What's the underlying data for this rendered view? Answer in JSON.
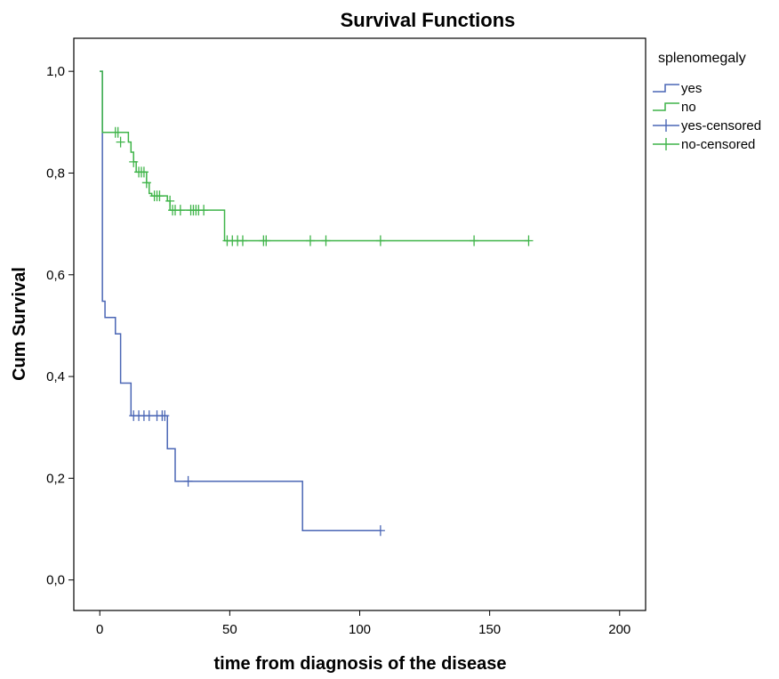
{
  "chart_data": {
    "type": "line",
    "step": true,
    "title": "Survival Functions",
    "xlabel": "time from diagnosis of the disease",
    "ylabel": "Cum Survival",
    "xlim": [
      -10,
      210
    ],
    "ylim": [
      -0.06,
      1.065
    ],
    "xticks": [
      0,
      50,
      100,
      150,
      200
    ],
    "xtick_labels": [
      "0",
      "50",
      "100",
      "150",
      "200"
    ],
    "yticks": [
      0.0,
      0.2,
      0.4,
      0.6,
      0.8,
      1.0
    ],
    "ytick_labels": [
      "0,0",
      "0,2",
      "0,4",
      "0,6",
      "0,8",
      "1,0"
    ],
    "grid": false,
    "legend": {
      "title": "splenomegaly",
      "placement": "right",
      "entries": [
        "yes",
        "no",
        "yes-censored",
        "no-censored"
      ]
    },
    "series": [
      {
        "name": "yes",
        "color": "#4a66b5",
        "steps": [
          [
            0,
            1.0
          ],
          [
            1,
            0.548
          ],
          [
            2,
            0.516
          ],
          [
            6,
            0.484
          ],
          [
            8,
            0.387
          ],
          [
            12,
            0.323
          ],
          [
            26,
            0.258
          ],
          [
            29,
            0.194
          ],
          [
            78,
            0.097
          ],
          [
            108,
            0.097
          ]
        ],
        "censored": [
          [
            13,
            0.323
          ],
          [
            15,
            0.323
          ],
          [
            17,
            0.323
          ],
          [
            19,
            0.323
          ],
          [
            22,
            0.323
          ],
          [
            24,
            0.323
          ],
          [
            25,
            0.323
          ],
          [
            34,
            0.194
          ],
          [
            108,
            0.097
          ]
        ]
      },
      {
        "name": "no",
        "color": "#3fb449",
        "steps": [
          [
            0,
            1.0
          ],
          [
            1,
            0.88
          ],
          [
            11,
            0.861
          ],
          [
            12,
            0.841
          ],
          [
            13,
            0.822
          ],
          [
            14,
            0.802
          ],
          [
            18,
            0.781
          ],
          [
            19,
            0.76
          ],
          [
            20,
            0.755
          ],
          [
            26,
            0.745
          ],
          [
            27,
            0.727
          ],
          [
            48,
            0.667
          ],
          [
            165,
            0.667
          ]
        ],
        "censored": [
          [
            6,
            0.88
          ],
          [
            7,
            0.88
          ],
          [
            8,
            0.861
          ],
          [
            13,
            0.822
          ],
          [
            15,
            0.802
          ],
          [
            16,
            0.802
          ],
          [
            17,
            0.802
          ],
          [
            18,
            0.781
          ],
          [
            21,
            0.755
          ],
          [
            22,
            0.755
          ],
          [
            23,
            0.755
          ],
          [
            27,
            0.745
          ],
          [
            28,
            0.727
          ],
          [
            29,
            0.727
          ],
          [
            31,
            0.727
          ],
          [
            35,
            0.727
          ],
          [
            36,
            0.727
          ],
          [
            37,
            0.727
          ],
          [
            38,
            0.727
          ],
          [
            40,
            0.727
          ],
          [
            49,
            0.667
          ],
          [
            51,
            0.667
          ],
          [
            53,
            0.667
          ],
          [
            55,
            0.667
          ],
          [
            63,
            0.667
          ],
          [
            64,
            0.667
          ],
          [
            81,
            0.667
          ],
          [
            87,
            0.667
          ],
          [
            108,
            0.667
          ],
          [
            144,
            0.667
          ],
          [
            165,
            0.667
          ]
        ]
      }
    ]
  }
}
